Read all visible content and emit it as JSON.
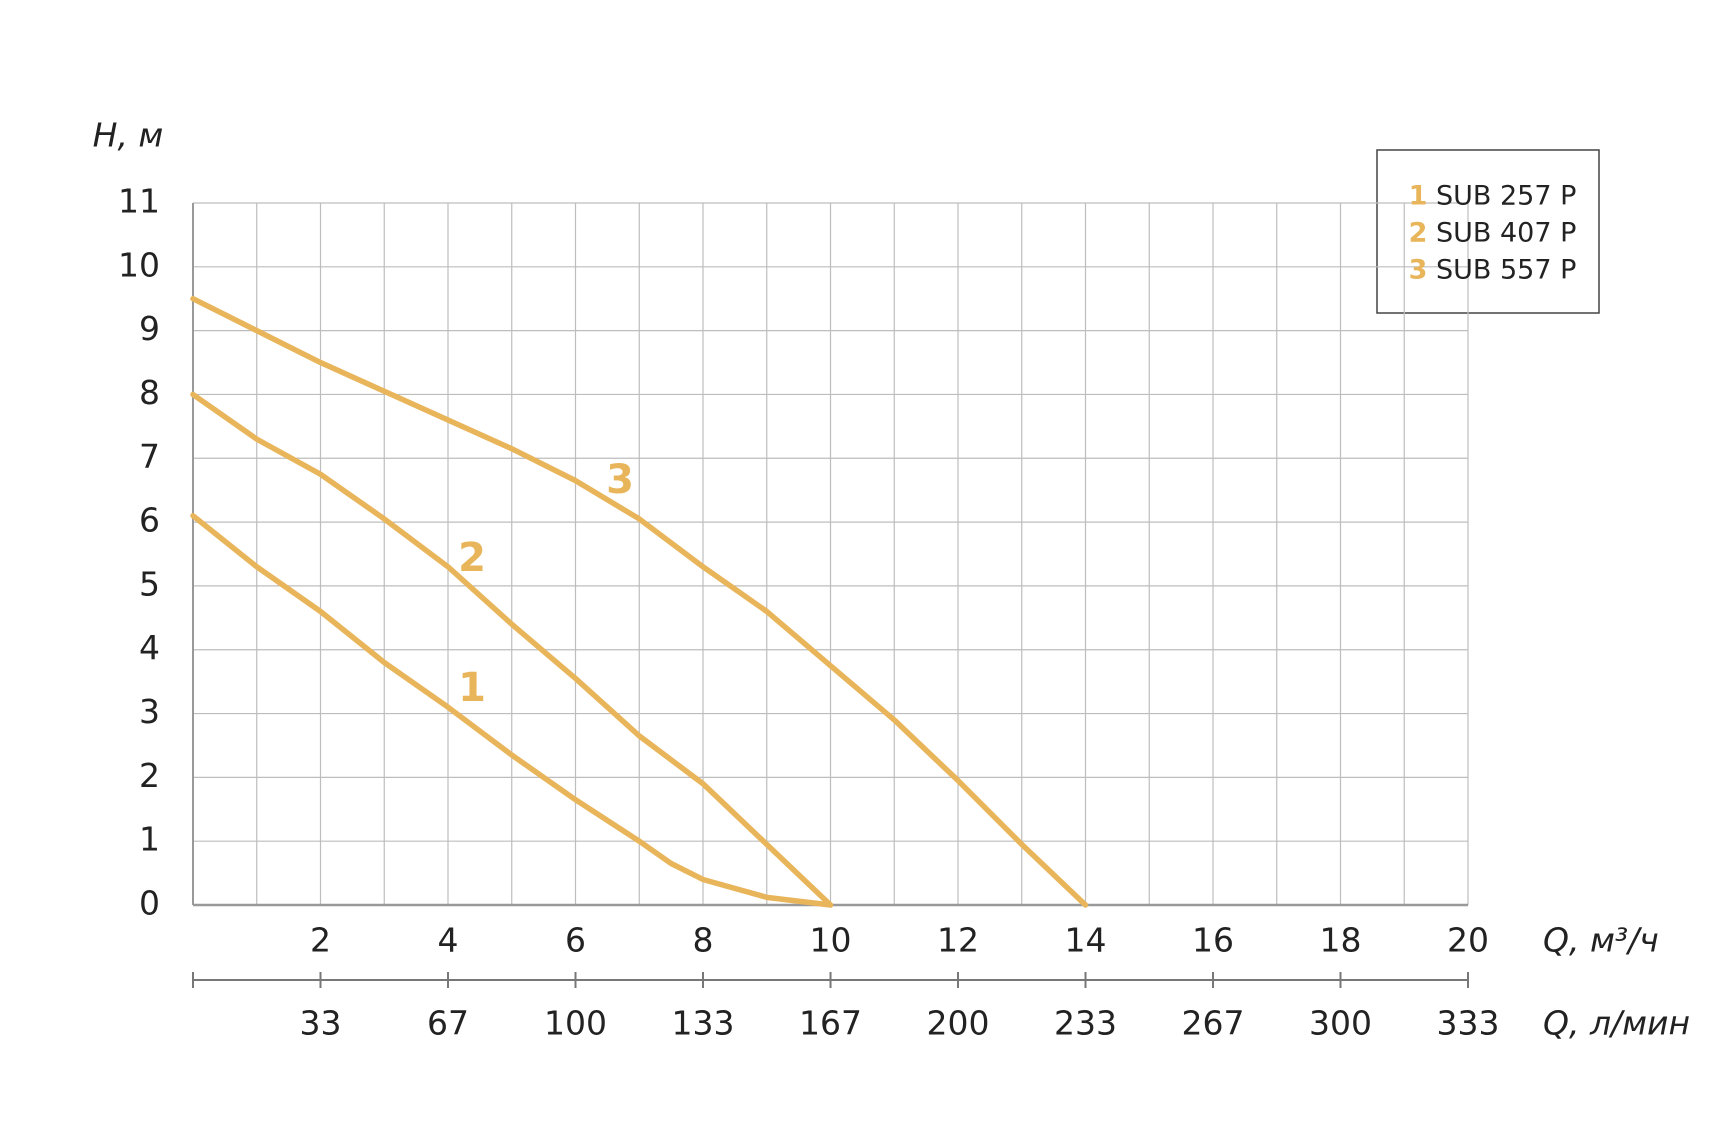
{
  "chart_data": {
    "type": "line",
    "ylabel": "H, м",
    "xlabel": "Q, м³/ч",
    "x2label": "Q, л/мин",
    "xlim": [
      0,
      20
    ],
    "ylim": [
      0,
      11
    ],
    "xticks": [
      2,
      4,
      6,
      8,
      10,
      12,
      14,
      16,
      18,
      20
    ],
    "minor_xticks": [
      1,
      3,
      5,
      7,
      9,
      11,
      13,
      15,
      17,
      19
    ],
    "yticks": [
      0,
      1,
      2,
      3,
      4,
      5,
      6,
      7,
      8,
      9,
      10,
      11
    ],
    "x2lim": [
      0,
      333.33
    ],
    "x2ticks": [
      {
        "value": 33.33,
        "label": "33"
      },
      {
        "value": 66.67,
        "label": "67"
      },
      {
        "value": 100,
        "label": "100"
      },
      {
        "value": 133.33,
        "label": "133"
      },
      {
        "value": 166.67,
        "label": "167"
      },
      {
        "value": 200,
        "label": "200"
      },
      {
        "value": 233.33,
        "label": "233"
      },
      {
        "value": 266.67,
        "label": "267"
      },
      {
        "value": 300,
        "label": "300"
      },
      {
        "value": 333.33,
        "label": "333"
      }
    ],
    "grid": true,
    "legend": "upper right",
    "series": [
      {
        "label": "1",
        "name": "SUB 257 P",
        "color": "#e8b55a",
        "x": [
          0,
          1,
          2,
          3,
          4,
          5,
          6,
          7,
          7.5,
          8,
          9,
          10
        ],
        "values": [
          6.1,
          5.3,
          4.6,
          3.8,
          3.1,
          2.35,
          1.65,
          1.0,
          0.65,
          0.4,
          0.12,
          0
        ]
      },
      {
        "label": "2",
        "name": "SUB 407 P",
        "color": "#e8b55a",
        "x": [
          0,
          1,
          2,
          3,
          4,
          5,
          6,
          7,
          8,
          9,
          10
        ],
        "values": [
          8.0,
          7.3,
          6.75,
          6.05,
          5.3,
          4.4,
          3.55,
          2.65,
          1.9,
          0.95,
          0
        ]
      },
      {
        "label": "3",
        "name": "SUB 557 P",
        "color": "#e8b55a",
        "x": [
          0,
          1,
          2,
          3,
          4,
          5,
          6,
          7,
          8,
          9,
          10,
          11,
          12,
          13,
          14
        ],
        "values": [
          9.5,
          9.0,
          8.5,
          8.05,
          7.6,
          7.15,
          6.65,
          6.05,
          5.3,
          4.6,
          3.75,
          2.9,
          1.95,
          0.95,
          0
        ]
      }
    ]
  }
}
